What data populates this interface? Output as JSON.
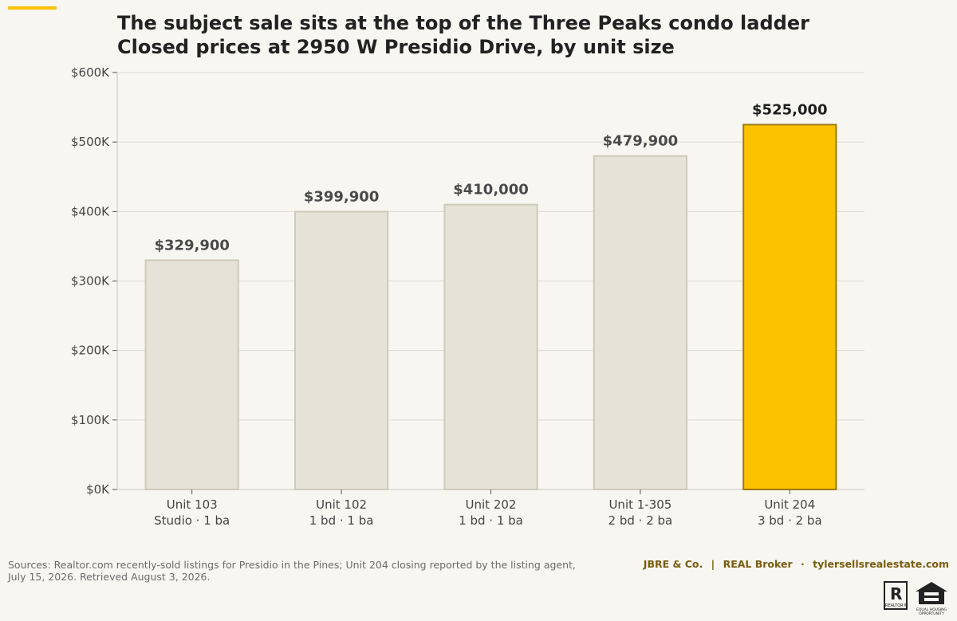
{
  "title_lines": [
    "The subject sale sits at the top of the Three Peaks condo ladder",
    "Closed prices at 2950 W Presidio Drive, by unit size"
  ],
  "colors": {
    "background": "#f7f6f1",
    "bar_default": "#e5e2d7",
    "bar_default_border": "#cfcbb9",
    "bar_highlight": "#fcc200",
    "bar_highlight_border": "#9a7a10",
    "accent": "#fcc200",
    "brand": "#7a5c10"
  },
  "chart_data": {
    "type": "bar",
    "categories": [
      [
        "Unit 103",
        "Studio · 1 ba"
      ],
      [
        "Unit 102",
        "1 bd · 1 ba"
      ],
      [
        "Unit 202",
        "1 bd · 1 ba"
      ],
      [
        "Unit 1-305",
        "2 bd · 2 ba"
      ],
      [
        "Unit 204",
        "3 bd · 2 ba"
      ]
    ],
    "values": [
      329900,
      399900,
      410000,
      479900,
      525000
    ],
    "data_labels": [
      "$329,900",
      "$399,900",
      "$410,000",
      "$479,900",
      "$525,000"
    ],
    "highlight_index": 4,
    "ylim": [
      0,
      600000
    ],
    "yticks": [
      0,
      100000,
      200000,
      300000,
      400000,
      500000,
      600000
    ],
    "ytick_labels": [
      "$0K",
      "$100K",
      "$200K",
      "$300K",
      "$400K",
      "$500K",
      "$600K"
    ],
    "grid": true,
    "xlabel": "",
    "ylabel": ""
  },
  "footer": {
    "source_lines": [
      "Sources: Realtor.com recently-sold listings for Presidio in the Pines; Unit 204 closing reported by the listing agent,",
      "July 15, 2026. Retrieved August 3, 2026."
    ],
    "brand_name": "JBRE & Co.",
    "brokerage": "REAL Broker",
    "website": "tylersellsrealestate.com",
    "sep1": "|",
    "sep2": "·",
    "realtor_logo_letter": "R",
    "realtor_logo_caption": "REALTOR®",
    "eho_caption": "EQUAL HOUSING OPPORTUNITY"
  }
}
